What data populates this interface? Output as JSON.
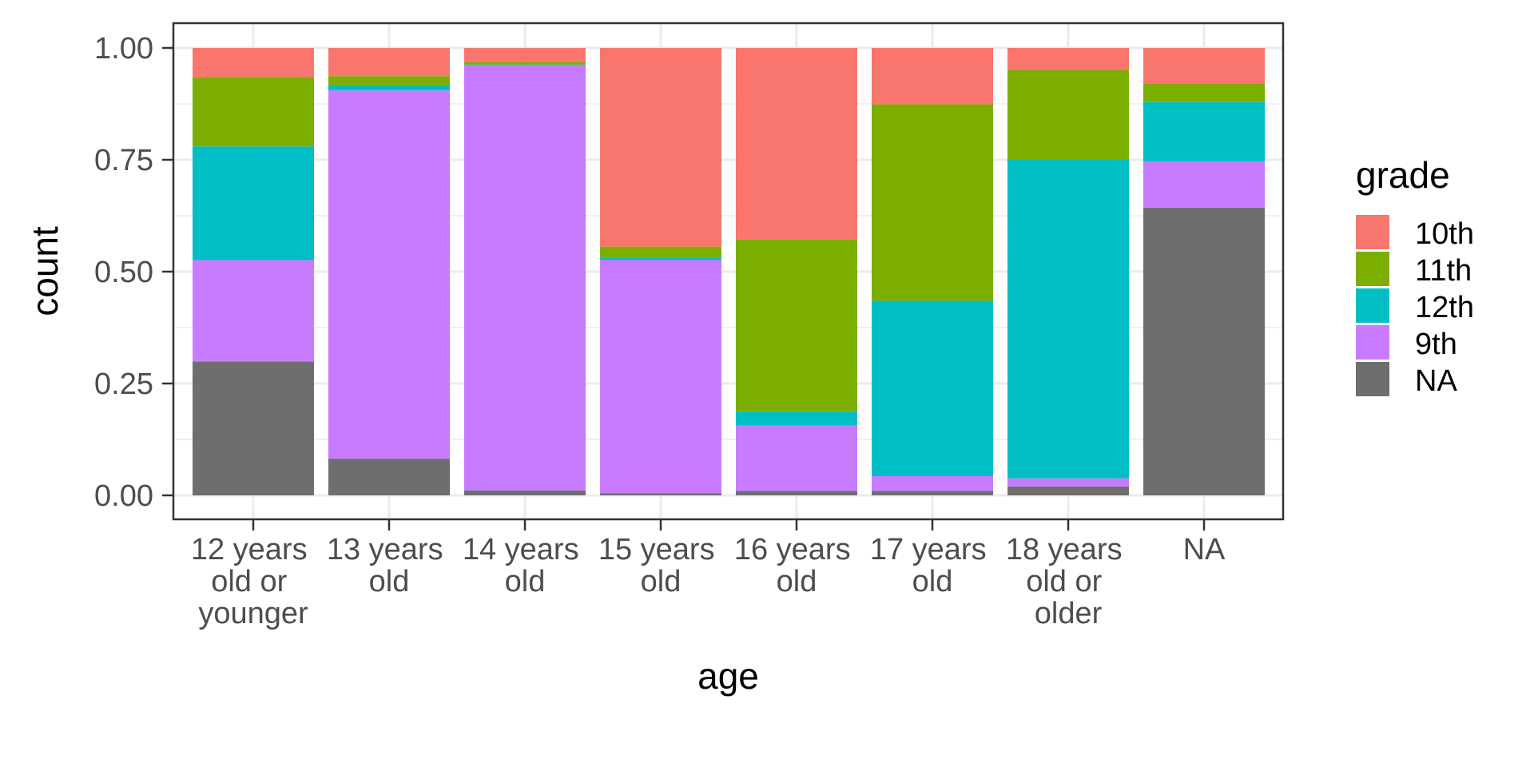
{
  "chart_data": {
    "type": "bar",
    "stacked": true,
    "position": "fill",
    "xlabel": "age",
    "ylabel": "count",
    "ylim": [
      0,
      1
    ],
    "yticks": [
      "0.00",
      "0.25",
      "0.50",
      "0.75",
      "1.00"
    ],
    "grid": true,
    "legend_position": "right",
    "legend_title": "grade",
    "categories": [
      "12 years old or younger",
      "13 years old",
      "14 years old",
      "15 years old",
      "16 years old",
      "17 years old",
      "18 years old or older",
      "NA"
    ],
    "series": [
      {
        "name": "10th",
        "color": "#F8766D",
        "values": [
          0.065,
          0.063,
          0.032,
          0.444,
          0.428,
          0.126,
          0.049,
          0.079
        ]
      },
      {
        "name": "11th",
        "color": "#7CAE00",
        "values": [
          0.155,
          0.021,
          0.005,
          0.025,
          0.384,
          0.439,
          0.201,
          0.042
        ]
      },
      {
        "name": "12th",
        "color": "#00BFC4",
        "values": [
          0.254,
          0.011,
          0.002,
          0.005,
          0.032,
          0.392,
          0.712,
          0.133
        ]
      },
      {
        "name": "9th",
        "color": "#C77CFF",
        "values": [
          0.227,
          0.823,
          0.95,
          0.521,
          0.146,
          0.033,
          0.018,
          0.103
        ]
      },
      {
        "name": "NA",
        "color": "#6E6E6E",
        "values": [
          0.299,
          0.082,
          0.011,
          0.005,
          0.01,
          0.01,
          0.02,
          0.643
        ]
      }
    ]
  }
}
